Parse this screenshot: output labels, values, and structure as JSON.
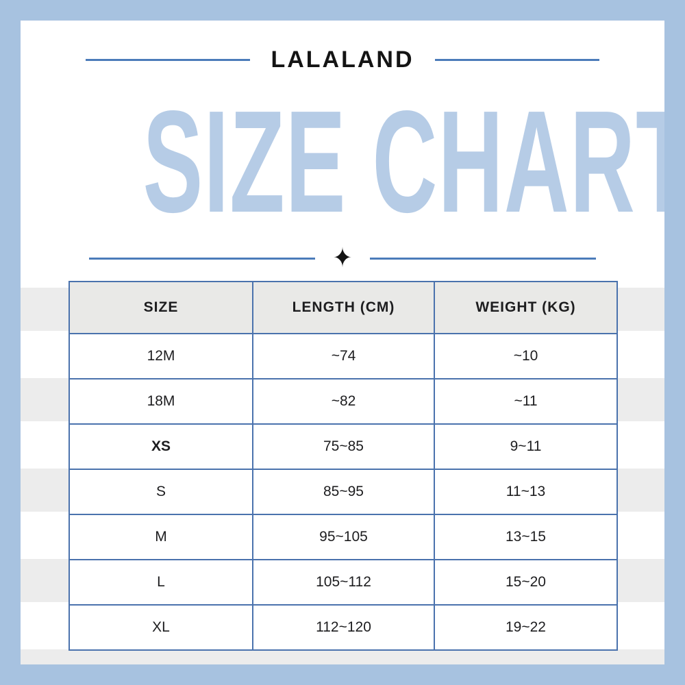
{
  "header": {
    "brand": "LALALAND",
    "title": "SIZE CHART",
    "divider_icon": "✦"
  },
  "chart_data": {
    "type": "table",
    "title": "SIZE CHART",
    "columns": [
      "SIZE",
      "LENGTH (CM)",
      "WEIGHT (KG)"
    ],
    "rows": [
      [
        "12M",
        "~74",
        "~10"
      ],
      [
        "18M",
        "~82",
        "~11"
      ],
      [
        "XS",
        "75~85",
        "9~11"
      ],
      [
        "S",
        "85~95",
        "11~13"
      ],
      [
        "M",
        "95~105",
        "13~15"
      ],
      [
        "L",
        "105~112",
        "15~20"
      ],
      [
        "XL",
        "112~120",
        "19~22"
      ]
    ]
  },
  "colors": {
    "frame": "#a7c2e0",
    "title_text": "#b6cce6",
    "rule_blue": "#4b7cba",
    "table_border": "#4a72ad",
    "header_bg": "#e9e9e7",
    "stripe": "#ececec",
    "text": "#1d1d1f"
  }
}
